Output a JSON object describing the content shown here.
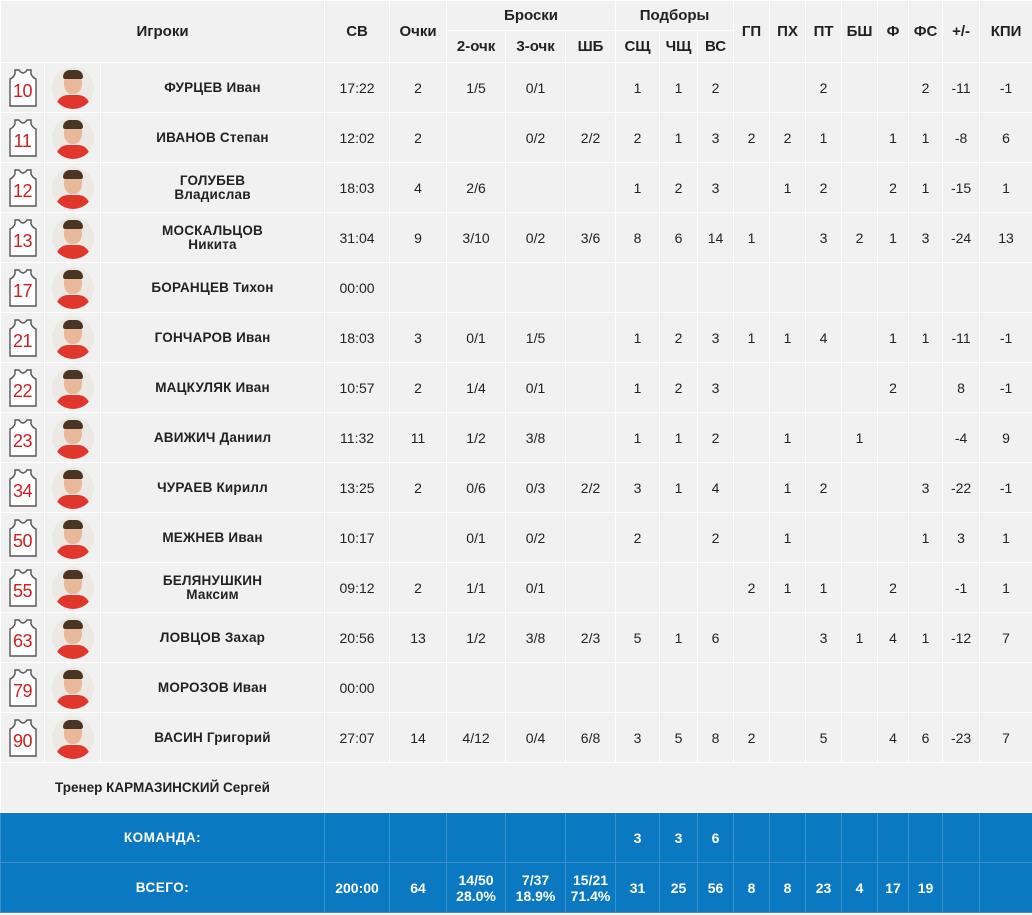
{
  "colors": {
    "header_bg": "#f1f1f1",
    "row_bg": "#f1f1f1",
    "total_bg": "#0b78c2",
    "jersey_number": "#cc1f1f"
  },
  "headers": {
    "players": "Игроки",
    "min": "СВ",
    "pts": "Очки",
    "shots": "Броски",
    "rebounds": "Подборы",
    "fg2": "2-очк",
    "fg3": "3-очк",
    "ft": "ШБ",
    "def": "СЩ",
    "off": "ЧЩ",
    "tot": "ВС",
    "ast": "ГП",
    "stl": "ПХ",
    "to": "ПТ",
    "blk": "БШ",
    "fouls": "Ф",
    "fd": "ФС",
    "pm": "+/-",
    "eff": "КПИ"
  },
  "players": [
    {
      "number": "10",
      "last": "ФУРЦЕВ",
      "first": "Иван",
      "split": false,
      "min": "17:22",
      "pts": "2",
      "fg2": "1/5",
      "fg3": "0/1",
      "ft": "",
      "def": "1",
      "off": "1",
      "tot": "2",
      "ast": "",
      "stl": "",
      "to": "2",
      "blk": "",
      "fouls": "",
      "fd": "2",
      "pm": "-11",
      "eff": "-1"
    },
    {
      "number": "11",
      "last": "ИВАНОВ",
      "first": "Степан",
      "split": false,
      "min": "12:02",
      "pts": "2",
      "fg2": "",
      "fg3": "0/2",
      "ft": "2/2",
      "def": "2",
      "off": "1",
      "tot": "3",
      "ast": "2",
      "stl": "2",
      "to": "1",
      "blk": "",
      "fouls": "1",
      "fd": "1",
      "pm": "-8",
      "eff": "6"
    },
    {
      "number": "12",
      "last": "ГОЛУБЕВ",
      "first": "Владислав",
      "split": true,
      "min": "18:03",
      "pts": "4",
      "fg2": "2/6",
      "fg3": "",
      "ft": "",
      "def": "1",
      "off": "2",
      "tot": "3",
      "ast": "",
      "stl": "1",
      "to": "2",
      "blk": "",
      "fouls": "2",
      "fd": "1",
      "pm": "-15",
      "eff": "1"
    },
    {
      "number": "13",
      "last": "МОСКАЛЬЦОВ",
      "first": "Никита",
      "split": true,
      "min": "31:04",
      "pts": "9",
      "fg2": "3/10",
      "fg3": "0/2",
      "ft": "3/6",
      "def": "8",
      "off": "6",
      "tot": "14",
      "ast": "1",
      "stl": "",
      "to": "3",
      "blk": "2",
      "fouls": "1",
      "fd": "3",
      "pm": "-24",
      "eff": "13"
    },
    {
      "number": "17",
      "last": "БОРАНЦЕВ",
      "first": "Тихон",
      "split": false,
      "min": "00:00",
      "pts": "",
      "fg2": "",
      "fg3": "",
      "ft": "",
      "def": "",
      "off": "",
      "tot": "",
      "ast": "",
      "stl": "",
      "to": "",
      "blk": "",
      "fouls": "",
      "fd": "",
      "pm": "",
      "eff": ""
    },
    {
      "number": "21",
      "last": "ГОНЧАРОВ",
      "first": "Иван",
      "split": false,
      "min": "18:03",
      "pts": "3",
      "fg2": "0/1",
      "fg3": "1/5",
      "ft": "",
      "def": "1",
      "off": "2",
      "tot": "3",
      "ast": "1",
      "stl": "1",
      "to": "4",
      "blk": "",
      "fouls": "1",
      "fd": "1",
      "pm": "-11",
      "eff": "-1"
    },
    {
      "number": "22",
      "last": "МАЦКУЛЯК",
      "first": "Иван",
      "split": false,
      "min": "10:57",
      "pts": "2",
      "fg2": "1/4",
      "fg3": "0/1",
      "ft": "",
      "def": "1",
      "off": "2",
      "tot": "3",
      "ast": "",
      "stl": "",
      "to": "",
      "blk": "",
      "fouls": "2",
      "fd": "",
      "pm": "8",
      "eff": "-1"
    },
    {
      "number": "23",
      "last": "АВИЖИЧ",
      "first": "Даниил",
      "split": false,
      "min": "11:32",
      "pts": "11",
      "fg2": "1/2",
      "fg3": "3/8",
      "ft": "",
      "def": "1",
      "off": "1",
      "tot": "2",
      "ast": "",
      "stl": "1",
      "to": "",
      "blk": "1",
      "fouls": "",
      "fd": "",
      "pm": "-4",
      "eff": "9"
    },
    {
      "number": "34",
      "last": "ЧУРАЕВ",
      "first": "Кирилл",
      "split": false,
      "min": "13:25",
      "pts": "2",
      "fg2": "0/6",
      "fg3": "0/3",
      "ft": "2/2",
      "def": "3",
      "off": "1",
      "tot": "4",
      "ast": "",
      "stl": "1",
      "to": "2",
      "blk": "",
      "fouls": "",
      "fd": "3",
      "pm": "-22",
      "eff": "-1"
    },
    {
      "number": "50",
      "last": "МЕЖНЕВ",
      "first": "Иван",
      "split": false,
      "min": "10:17",
      "pts": "",
      "fg2": "0/1",
      "fg3": "0/2",
      "ft": "",
      "def": "2",
      "off": "",
      "tot": "2",
      "ast": "",
      "stl": "1",
      "to": "",
      "blk": "",
      "fouls": "",
      "fd": "1",
      "pm": "3",
      "eff": "1"
    },
    {
      "number": "55",
      "last": "БЕЛЯНУШКИН",
      "first": "Максим",
      "split": true,
      "min": "09:12",
      "pts": "2",
      "fg2": "1/1",
      "fg3": "0/1",
      "ft": "",
      "def": "",
      "off": "",
      "tot": "",
      "ast": "2",
      "stl": "1",
      "to": "1",
      "blk": "",
      "fouls": "2",
      "fd": "",
      "pm": "-1",
      "eff": "1"
    },
    {
      "number": "63",
      "last": "ЛОВЦОВ",
      "first": "Захар",
      "split": false,
      "min": "20:56",
      "pts": "13",
      "fg2": "1/2",
      "fg3": "3/8",
      "ft": "2/3",
      "def": "5",
      "off": "1",
      "tot": "6",
      "ast": "",
      "stl": "",
      "to": "3",
      "blk": "1",
      "fouls": "4",
      "fd": "1",
      "pm": "-12",
      "eff": "7"
    },
    {
      "number": "79",
      "last": "МОРОЗОВ",
      "first": "Иван",
      "split": false,
      "min": "00:00",
      "pts": "",
      "fg2": "",
      "fg3": "",
      "ft": "",
      "def": "",
      "off": "",
      "tot": "",
      "ast": "",
      "stl": "",
      "to": "",
      "blk": "",
      "fouls": "",
      "fd": "",
      "pm": "",
      "eff": ""
    },
    {
      "number": "90",
      "last": "ВАСИН",
      "first": "Григорий",
      "split": false,
      "min": "27:07",
      "pts": "14",
      "fg2": "4/12",
      "fg3": "0/4",
      "ft": "6/8",
      "def": "3",
      "off": "5",
      "tot": "8",
      "ast": "2",
      "stl": "",
      "to": "5",
      "blk": "",
      "fouls": "4",
      "fd": "6",
      "pm": "-23",
      "eff": "7"
    }
  ],
  "coach": "Тренер КАРМАЗИНСКИЙ Сергей",
  "team": {
    "label": "КОМАНДА:",
    "def": "3",
    "off": "3",
    "tot": "6"
  },
  "total": {
    "label": "ВСЕГО:",
    "min": "200:00",
    "pts": "64",
    "fg2": "14/50",
    "fg2_pct": "28.0%",
    "fg3": "7/37",
    "fg3_pct": "18.9%",
    "ft": "15/21",
    "ft_pct": "71.4%",
    "def": "31",
    "off": "25",
    "tot": "56",
    "ast": "8",
    "stl": "8",
    "to": "23",
    "blk": "4",
    "fouls": "17",
    "fd": "19"
  }
}
